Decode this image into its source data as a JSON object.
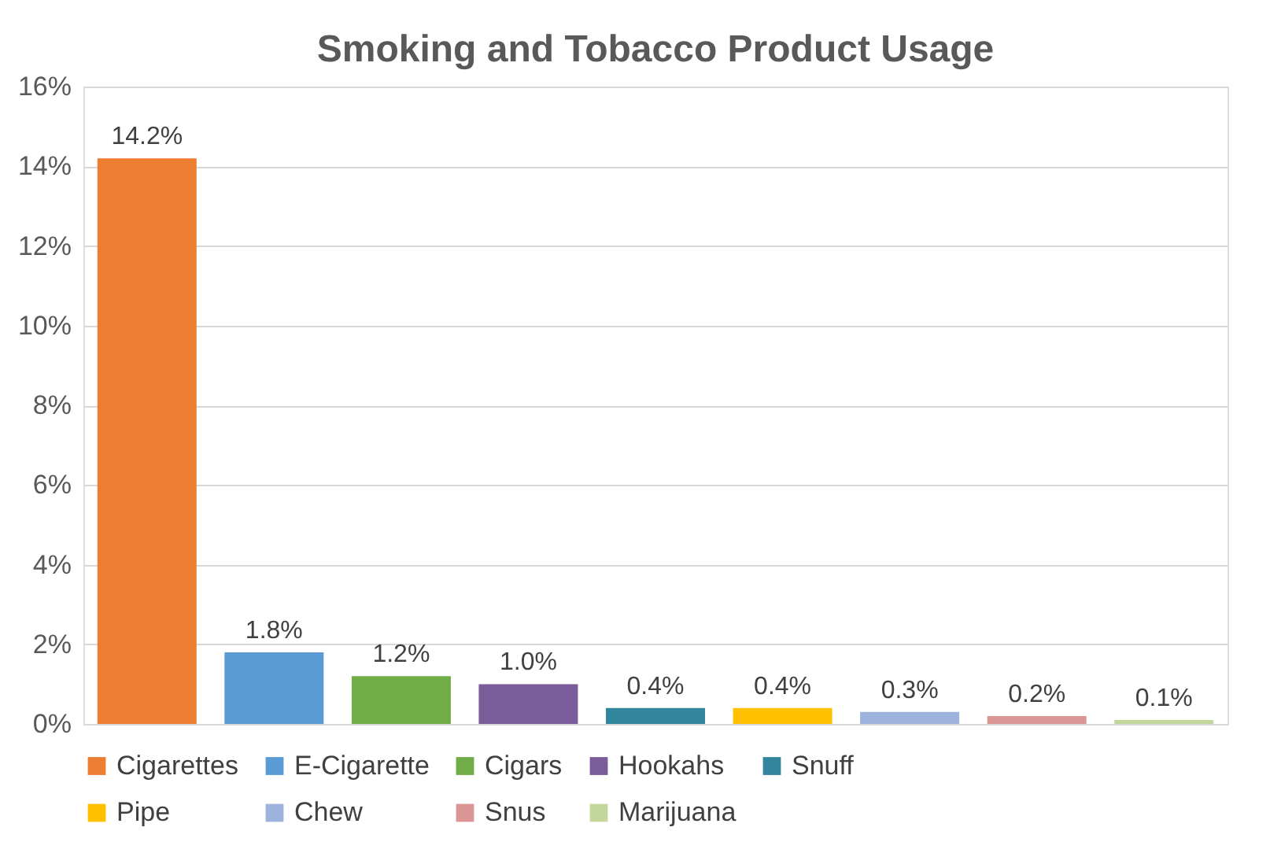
{
  "chart_data": {
    "type": "bar",
    "title": "Smoking and Tobacco Product Usage",
    "categories": [
      null,
      null,
      null,
      null,
      null,
      null,
      null,
      null,
      null
    ],
    "stacked": true,
    "series": [
      {
        "name": "Cigarettes",
        "color": "#ed7d31",
        "values": [
          14.2,
          null,
          null,
          null,
          null,
          null,
          null,
          null,
          null
        ],
        "value_labels": [
          "14.2%",
          null,
          null,
          null,
          null,
          null,
          null,
          null,
          null
        ]
      },
      {
        "name": "E-Cigarette",
        "color": "#5b9bd5",
        "values": [
          null,
          1.8,
          null,
          null,
          null,
          null,
          null,
          null,
          null
        ],
        "value_labels": [
          null,
          "1.8%",
          null,
          null,
          null,
          null,
          null,
          null,
          null
        ]
      },
      {
        "name": "Cigars",
        "color": "#70ad47",
        "values": [
          null,
          null,
          1.2,
          null,
          null,
          null,
          null,
          null,
          null
        ],
        "value_labels": [
          null,
          null,
          "1.2%",
          null,
          null,
          null,
          null,
          null,
          null
        ]
      },
      {
        "name": "Hookahs",
        "color": "#7a5c9a",
        "values": [
          null,
          null,
          null,
          1.0,
          null,
          null,
          null,
          null,
          null
        ],
        "value_labels": [
          null,
          null,
          null,
          "1.0%",
          null,
          null,
          null,
          null,
          null
        ]
      },
      {
        "name": "Snuff",
        "color": "#31859c",
        "values": [
          null,
          null,
          null,
          null,
          0.4,
          null,
          null,
          null,
          null
        ],
        "value_labels": [
          null,
          null,
          null,
          null,
          "0.4%",
          null,
          null,
          null,
          null
        ]
      },
      {
        "name": "Pipe",
        "color": "#ffc000",
        "values": [
          null,
          null,
          null,
          null,
          null,
          0.4,
          null,
          null,
          null
        ],
        "value_labels": [
          null,
          null,
          null,
          null,
          null,
          "0.4%",
          null,
          null,
          null
        ]
      },
      {
        "name": "Chew",
        "color": "#9db3db",
        "values": [
          null,
          null,
          null,
          null,
          null,
          null,
          0.3,
          null,
          null
        ],
        "value_labels": [
          null,
          null,
          null,
          null,
          null,
          null,
          "0.3%",
          null,
          null
        ]
      },
      {
        "name": "Snus",
        "color": "#d99694",
        "values": [
          null,
          null,
          null,
          null,
          null,
          null,
          null,
          0.2,
          null
        ],
        "value_labels": [
          null,
          null,
          null,
          null,
          null,
          null,
          null,
          "0.2%",
          null
        ]
      },
      {
        "name": "Marijuana",
        "color": "#c3d69b",
        "values": [
          null,
          null,
          null,
          null,
          null,
          null,
          null,
          null,
          0.1
        ],
        "value_labels": [
          null,
          null,
          null,
          null,
          null,
          null,
          null,
          null,
          "0.1%"
        ]
      }
    ],
    "ylim": [
      0,
      16
    ],
    "yticks": [
      {
        "value": 0,
        "label": "0%"
      },
      {
        "value": 2,
        "label": "2%"
      },
      {
        "value": 4,
        "label": "4%"
      },
      {
        "value": 6,
        "label": "6%"
      },
      {
        "value": 8,
        "label": "8%"
      },
      {
        "value": 10,
        "label": "10%"
      },
      {
        "value": 12,
        "label": "12%"
      },
      {
        "value": 14,
        "label": "14%"
      },
      {
        "value": 16,
        "label": "16%"
      }
    ],
    "grid": "y",
    "legend": "bottom",
    "tick_labels": "y"
  }
}
